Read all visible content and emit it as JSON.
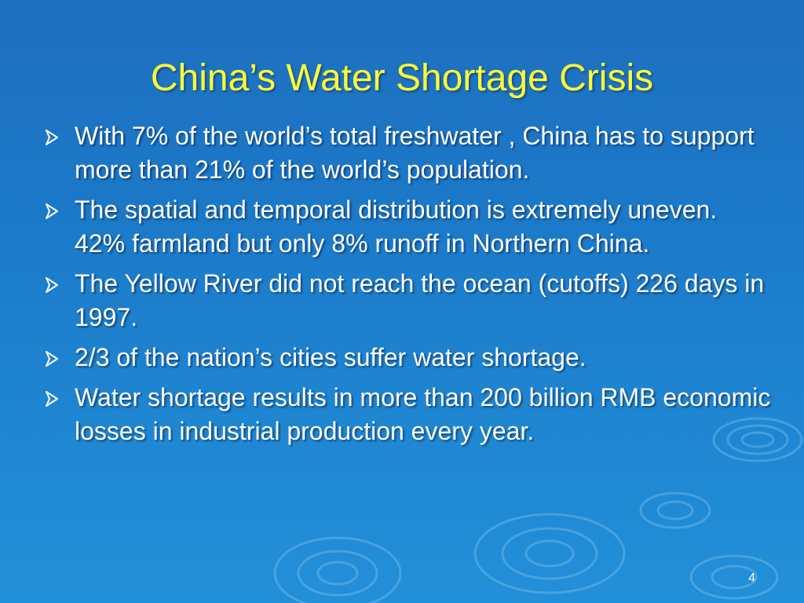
{
  "slide": {
    "title": "China’s Water Shortage Crisis",
    "bullets": [
      "With 7% of the world’s total freshwater , China has to support more than 21% of the world’s population.",
      "The spatial and temporal distribution is extremely uneven. 42% farmland but only 8% runoff in Northern China.",
      "The Yellow River did not reach the ocean (cutoffs) 226 days in 1997.",
      "2/3 of the nation’s cities suffer water shortage.",
      "Water shortage results in more than 200 billion RMB economic losses in industrial production every year."
    ],
    "slide_number": "4",
    "bullet_icon": "arrow-bullet-icon",
    "background_decoration": "water-ripple-icon"
  },
  "colors": {
    "background": "#1b79c8",
    "title": "#ffff33",
    "body_text": "#ffffff",
    "bullet_arrow": "#ffffff"
  }
}
